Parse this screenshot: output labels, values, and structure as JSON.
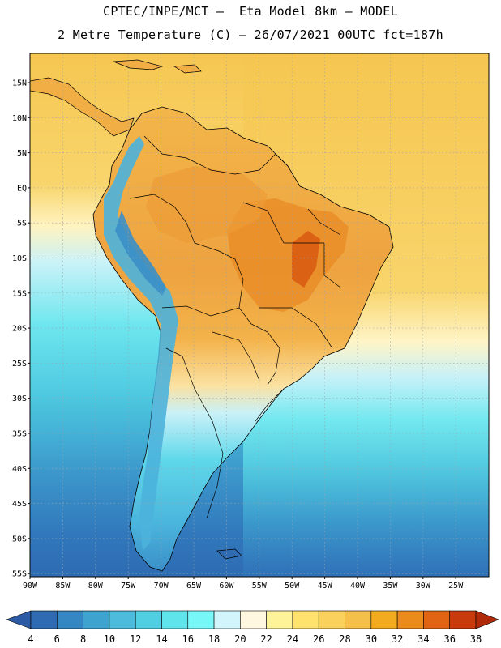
{
  "title_line1": "CPTEC/INPE/MCT —  Eta Model 8km — MODEL",
  "title_line2": "2 Metre Temperature (C) — 26/07/2021 00UTC fct=187h",
  "lat_ticks": [
    "15N",
    "10N",
    "5N",
    "EQ",
    "5S",
    "10S",
    "15S",
    "20S",
    "25S",
    "30S",
    "35S",
    "40S",
    "45S",
    "50S",
    "55S"
  ],
  "lon_ticks": [
    "90W",
    "85W",
    "80W",
    "75W",
    "70W",
    "65W",
    "60W",
    "55W",
    "50W",
    "45W",
    "40W",
    "35W",
    "30W",
    "25W"
  ],
  "colorbar": {
    "labels": [
      "4",
      "6",
      "8",
      "10",
      "12",
      "14",
      "16",
      "18",
      "20",
      "22",
      "24",
      "26",
      "28",
      "30",
      "32",
      "34",
      "36",
      "38"
    ],
    "colors": [
      "#2e6bb2",
      "#3487c2",
      "#3fa3d0",
      "#4dbbdc",
      "#50cfe3",
      "#5fe4ec",
      "#77f7f7",
      "#d2f5fb",
      "#fff7e0",
      "#fff39a",
      "#ffe16e",
      "#fbd15d",
      "#f5c04a",
      "#f2aa1e",
      "#ea8b1c",
      "#e06414",
      "#c83a0b"
    ],
    "low_color": "#2d5aa5",
    "high_color": "#b02a09"
  },
  "map": {
    "ocean_color_tropical": "#f7cf5c",
    "land_color_hot": "#ec9b36",
    "andes_color": "#4bb3dc",
    "south_ocean_color": "#2f74b9"
  }
}
